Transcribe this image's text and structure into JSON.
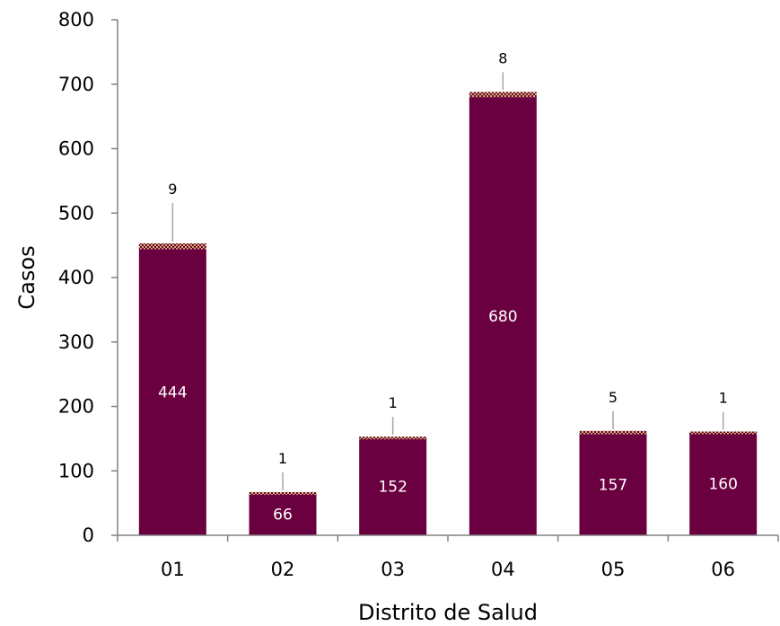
{
  "chart_data": {
    "type": "bar",
    "stacked": true,
    "categories": [
      "01",
      "02",
      "03",
      "04",
      "05",
      "06"
    ],
    "series": [
      {
        "values": [
          444,
          66,
          152,
          680,
          157,
          160
        ],
        "color": "#6b0040",
        "pattern": "solid"
      },
      {
        "values": [
          9,
          1,
          1,
          8,
          5,
          1
        ],
        "color": "#6b0040",
        "pattern": "checkered-gold"
      }
    ],
    "xlabel": "Distrito de Salud",
    "ylabel": "Casos",
    "ylim": [
      0,
      800
    ],
    "yticks": [
      0,
      100,
      200,
      300,
      400,
      500,
      600,
      700,
      800
    ],
    "grid": false,
    "legend": "none",
    "data_labels": {
      "inside": [
        "444",
        "66",
        "152",
        "680",
        "157",
        "160"
      ],
      "top": [
        "9",
        "1",
        "1",
        "8",
        "5",
        "1"
      ]
    }
  }
}
